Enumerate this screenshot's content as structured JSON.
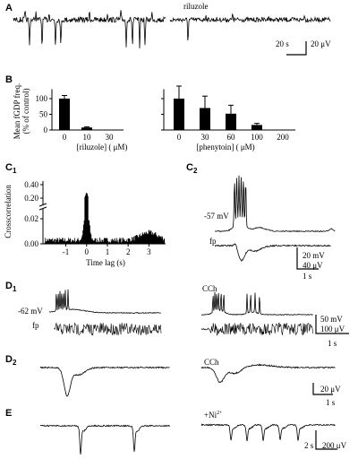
{
  "labels": [
    {
      "main": "A"
    },
    {
      "main": "B"
    },
    {
      "main": "C",
      "sub": "1"
    },
    {
      "main": "C",
      "sub": "2"
    },
    {
      "main": "D",
      "sub": "1"
    },
    {
      "main": "D",
      "sub": "2"
    },
    {
      "main": "E"
    }
  ],
  "a": {
    "title": "riluzole",
    "scale": [
      "20 s",
      "20 μV"
    ]
  },
  "chart_data": [
    {
      "type": "bar",
      "y_label": [
        "Mean fGDP freq.",
        "(% of control)"
      ],
      "x_label": "[riluzole] ( μM)",
      "categories": [
        "0",
        "10",
        "30"
      ],
      "values": [
        100,
        8,
        0
      ],
      "errors": [
        10,
        2,
        0
      ],
      "color": "#000000",
      "ylim": [
        0,
        130
      ],
      "yticks": [
        0,
        50,
        100
      ]
    },
    {
      "type": "bar",
      "x_label": "[phenytoin] ( μM)",
      "categories": [
        "0",
        "30",
        "60",
        "100",
        "200"
      ],
      "values": [
        100,
        70,
        52,
        16,
        0
      ],
      "errors": [
        40,
        38,
        27,
        5,
        0
      ],
      "color": "#000000",
      "ylim": [
        0,
        130
      ]
    }
  ],
  "c1": {
    "y_label": "Crosscorrelation",
    "x_label": "Time lag (s)",
    "xlim": [
      -2.1,
      3.8
    ],
    "xticks": [
      -1,
      0,
      1,
      2,
      3
    ],
    "yticks": [
      {
        "value": 0,
        "label": "0.00"
      },
      {
        "value": 0.02,
        "label": "0.02"
      },
      {
        "value": 0.2,
        "label": "0.20"
      },
      {
        "value": 0.4,
        "label": "0.40"
      }
    ]
  },
  "c2": {
    "vm": "-57 mV",
    "fp": "fp",
    "scale": [
      "20 mV",
      "40 μV",
      "1 s"
    ]
  },
  "d1": {
    "vm": "-62 mV",
    "fp": "fp",
    "drug": "CCh",
    "scale": [
      "50 mV",
      "100 μV",
      "1 s"
    ]
  },
  "d2": {
    "drug": "CCh",
    "scale": [
      "20 μV",
      "1 s"
    ]
  },
  "e": {
    "drug": "+Ni",
    "drug_sup": "2+",
    "scale": [
      "2 s",
      "200 μV"
    ]
  }
}
